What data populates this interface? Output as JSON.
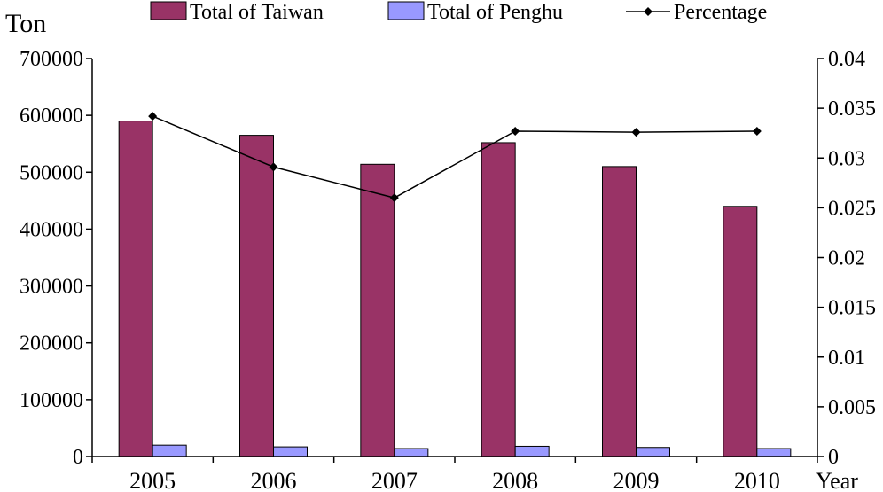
{
  "chart_data": {
    "type": "bar",
    "categories": [
      "2005",
      "2006",
      "2007",
      "2008",
      "2009",
      "2010"
    ],
    "series": [
      {
        "name": "Total of Taiwan",
        "type": "bar",
        "axis": "left",
        "values": [
          590000,
          565000,
          514000,
          552000,
          510000,
          440000
        ]
      },
      {
        "name": "Total of Penghu",
        "type": "bar",
        "axis": "left",
        "values": [
          20000,
          17000,
          14000,
          18000,
          16000,
          14000
        ]
      },
      {
        "name": "Percentage",
        "type": "line",
        "axis": "right",
        "values": [
          0.0342,
          0.0291,
          0.026,
          0.0327,
          0.0326,
          0.0327
        ]
      }
    ],
    "ylabel": "Ton",
    "xlabel": "Year",
    "ylim": [
      0,
      700000
    ],
    "yticks": [
      "0",
      "100000",
      "200000",
      "300000",
      "400000",
      "500000",
      "600000",
      "700000"
    ],
    "y2lim": [
      0,
      0.04
    ],
    "y2ticks": [
      "0",
      "0.005",
      "0.01",
      "0.015",
      "0.02",
      "0.025",
      "0.03",
      "0.035",
      "0.04"
    ],
    "grid": false,
    "legend_position": "top",
    "colors": {
      "taiwan": "#993366",
      "penghu": "#9999ff",
      "percentage": "#000000"
    }
  }
}
